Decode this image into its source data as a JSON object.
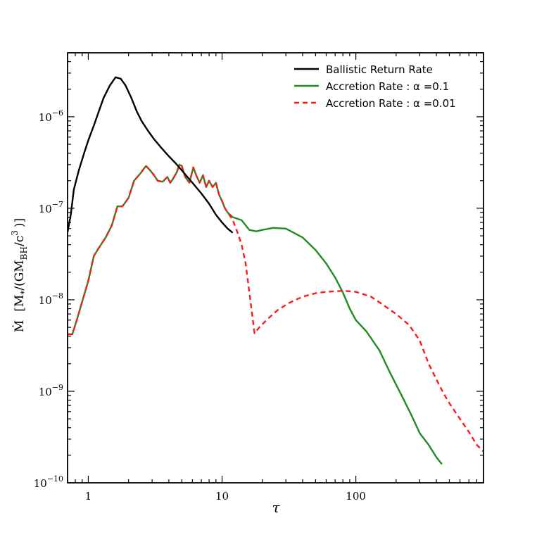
{
  "chart_data": {
    "type": "line",
    "title": "",
    "xlabel": "τ",
    "ylabel": {
      "parts": [
        "Ṁ",
        "[M",
        "*",
        "/(GM",
        "BH",
        "/c",
        "3",
        ")]"
      ],
      "text": "Ṁ [M*/(GM_BH/c^3)]"
    },
    "xscale": "log",
    "yscale": "log",
    "xlim": [
      0.7,
      900
    ],
    "ylim": [
      1e-10,
      5e-06
    ],
    "x_ticks": [
      {
        "value": 1,
        "label": "1"
      },
      {
        "value": 10,
        "label": "10"
      },
      {
        "value": 100,
        "label": "100"
      }
    ],
    "y_ticks": [
      {
        "value": 1e-10,
        "base": "10",
        "exp": "−10"
      },
      {
        "value": 1e-09,
        "base": "10",
        "exp": "−9"
      },
      {
        "value": 1e-08,
        "base": "10",
        "exp": "−8"
      },
      {
        "value": 1e-07,
        "base": "10",
        "exp": "−7"
      },
      {
        "value": 1e-06,
        "base": "10",
        "exp": "−6"
      }
    ],
    "legend_position": "top-right",
    "series": [
      {
        "name": "Ballistic Return Rate",
        "legend_label": "Ballistic Return Rate",
        "color": "#000000",
        "style": "solid",
        "x": [
          0.7,
          0.74,
          0.78,
          0.85,
          0.93,
          1.0,
          1.1,
          1.2,
          1.3,
          1.45,
          1.6,
          1.75,
          1.9,
          2.1,
          2.3,
          2.5,
          2.8,
          3.1,
          3.5,
          4.0,
          4.5,
          5.0,
          5.5,
          6.0,
          7.0,
          8.0,
          9.0,
          10.0,
          11.0,
          12.0
        ],
        "y": [
          5.5e-08,
          8.5e-08,
          1.6e-07,
          2.6e-07,
          4e-07,
          5.5e-07,
          8e-07,
          1.15e-06,
          1.6e-06,
          2.2e-06,
          2.7e-06,
          2.6e-06,
          2.2e-06,
          1.6e-06,
          1.15e-06,
          9e-07,
          7e-07,
          5.7e-07,
          4.6e-07,
          3.7e-07,
          3.1e-07,
          2.6e-07,
          2.2e-07,
          1.9e-07,
          1.45e-07,
          1.12e-07,
          8.5e-08,
          7e-08,
          6e-08,
          5.4e-08
        ]
      },
      {
        "name": "Accretion Rate α=0.1",
        "legend_label": "Accretion Rate : α =0.1",
        "color": "#228B22",
        "style": "solid",
        "x": [
          0.7,
          0.76,
          0.82,
          0.9,
          1.0,
          1.1,
          1.2,
          1.35,
          1.5,
          1.65,
          1.8,
          2.0,
          2.2,
          2.45,
          2.7,
          2.9,
          3.1,
          3.3,
          3.6,
          3.9,
          4.1,
          4.3,
          4.6,
          4.8,
          5.0,
          5.3,
          5.7,
          6.1,
          6.4,
          6.8,
          7.2,
          7.6,
          8.0,
          8.5,
          9.0,
          9.5,
          10.0,
          10.5,
          11.0,
          12.0,
          14.0,
          16.0,
          18.0,
          20.0,
          24.0,
          30.0,
          40.0,
          50.0,
          60.0,
          70.0,
          80.0,
          90.0,
          100.0,
          120.0,
          150.0,
          180.0,
          220.0,
          260.0,
          300.0,
          350.0,
          400.0,
          440.0
        ],
        "y": [
          4.2e-09,
          4.2e-09,
          6e-09,
          9.5e-09,
          1.6e-08,
          3e-08,
          3.7e-08,
          4.8e-08,
          6.5e-08,
          1.05e-07,
          1.05e-07,
          1.3e-07,
          2e-07,
          2.4e-07,
          2.9e-07,
          2.6e-07,
          2.3e-07,
          2e-07,
          1.95e-07,
          2.2e-07,
          1.9e-07,
          2.1e-07,
          2.5e-07,
          3e-07,
          2.9e-07,
          2.2e-07,
          1.9e-07,
          2.8e-07,
          2.3e-07,
          1.9e-07,
          2.3e-07,
          1.7e-07,
          2e-07,
          1.7e-07,
          1.9e-07,
          1.4e-07,
          1.2e-07,
          1e-07,
          9e-08,
          8e-08,
          7.4e-08,
          5.8e-08,
          5.6e-08,
          5.8e-08,
          6.1e-08,
          6e-08,
          4.8e-08,
          3.5e-08,
          2.5e-08,
          1.75e-08,
          1.2e-08,
          8e-09,
          6e-09,
          4.5e-09,
          2.8e-09,
          1.6e-09,
          9e-10,
          5.5e-10,
          3.5e-10,
          2.6e-10,
          1.9e-10,
          1.6e-10
        ]
      },
      {
        "name": "Accretion Rate α=0.01",
        "legend_label": "Accretion Rate : α =0.01",
        "color": "#FF1A1A",
        "style": "dashed",
        "x": [
          0.7,
          0.76,
          0.82,
          0.9,
          1.0,
          1.1,
          1.2,
          1.35,
          1.5,
          1.65,
          1.8,
          2.0,
          2.2,
          2.45,
          2.7,
          2.9,
          3.1,
          3.3,
          3.6,
          3.9,
          4.1,
          4.3,
          4.6,
          4.8,
          5.0,
          5.3,
          5.7,
          6.1,
          6.4,
          6.8,
          7.2,
          7.6,
          8.0,
          8.5,
          9.0,
          9.5,
          10.0,
          10.5,
          11.0,
          12.0,
          13.0,
          14.0,
          15.0,
          16.0,
          17.5,
          19.0,
          22.0,
          26.0,
          32.0,
          40.0,
          50.0,
          60.0,
          70.0,
          80.0,
          90.0,
          100.0,
          130.0,
          160.0,
          200.0,
          250.0,
          300.0,
          350.0,
          400.0,
          450.0,
          500.0,
          600.0,
          700.0,
          800.0,
          900.0
        ],
        "y": [
          4.2e-09,
          4.2e-09,
          6e-09,
          9.5e-09,
          1.6e-08,
          3e-08,
          3.7e-08,
          4.8e-08,
          6.5e-08,
          1.05e-07,
          1.05e-07,
          1.3e-07,
          2e-07,
          2.4e-07,
          2.9e-07,
          2.6e-07,
          2.3e-07,
          2e-07,
          1.95e-07,
          2.2e-07,
          1.9e-07,
          2.1e-07,
          2.5e-07,
          3e-07,
          2.9e-07,
          2.2e-07,
          1.9e-07,
          2.8e-07,
          2.3e-07,
          1.9e-07,
          2.3e-07,
          1.7e-07,
          2e-07,
          1.7e-07,
          1.9e-07,
          1.4e-07,
          1.2e-07,
          1e-07,
          9e-08,
          7.5e-08,
          5.5e-08,
          4e-08,
          2.5e-08,
          1.2e-08,
          4.3e-09,
          5e-09,
          6.2e-09,
          7.7e-09,
          9.3e-09,
          1.08e-08,
          1.18e-08,
          1.22e-08,
          1.24e-08,
          1.25e-08,
          1.24e-08,
          1.22e-08,
          1.08e-08,
          8.8e-09,
          7e-09,
          5.3e-09,
          3.6e-09,
          2e-09,
          1.35e-09,
          9.6e-10,
          7.4e-10,
          5e-10,
          3.6e-10,
          2.6e-10,
          2.2e-10
        ]
      }
    ]
  }
}
